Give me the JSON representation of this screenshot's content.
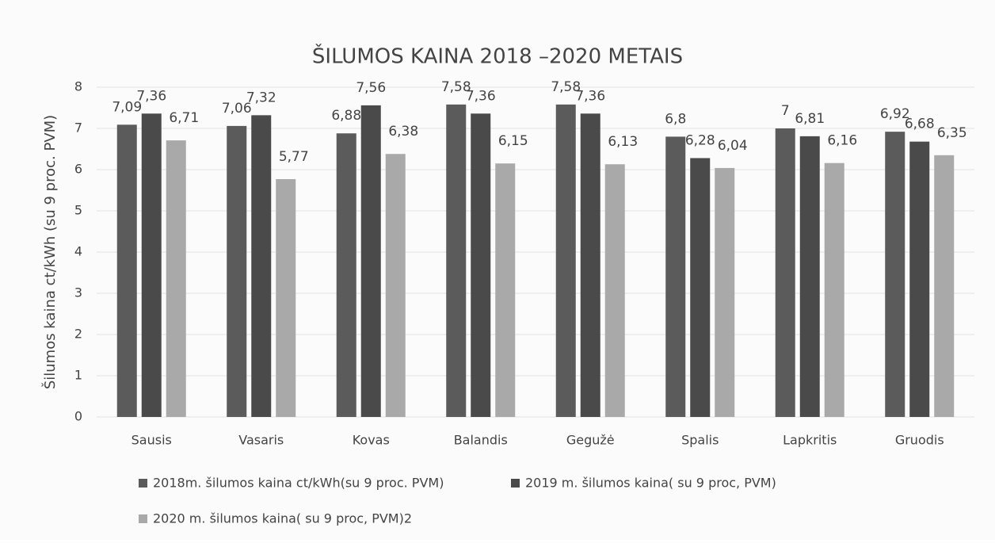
{
  "chart_data": {
    "type": "bar",
    "title": "ŠILUMOS KAINA 2018 –2020 METAIS",
    "y_label": "Šilumos kaina ct/kWh (su 9 proc. PVM)",
    "categories": [
      "Sausis",
      "Vasaris",
      "Kovas",
      "Balandis",
      "Gegužė",
      "Spalis",
      "Lapkritis",
      "Gruodis"
    ],
    "series": [
      {
        "name": "2018m. šilumos kaina ct/kWh(su 9 proc. PVM)",
        "color": "#5b5b5b",
        "values": [
          7.09,
          7.06,
          6.88,
          7.58,
          7.58,
          6.8,
          7,
          6.92
        ],
        "value_labels": [
          "7,09",
          "7,06",
          "6,88",
          "7,58",
          "7,58",
          "6,8",
          "7",
          "6,92"
        ]
      },
      {
        "name": "2019 m. šilumos kaina( su 9 proc, PVM)",
        "color": "#4a4a4a",
        "values": [
          7.36,
          7.32,
          7.56,
          7.36,
          7.36,
          6.28,
          6.81,
          6.68
        ],
        "value_labels": [
          "7,36",
          "7,32",
          "7,56",
          "7,36",
          "7,36",
          "6,28",
          "6,81",
          "6,68"
        ]
      },
      {
        "name": "2020 m. šilumos kaina( su 9 proc, PVM)2",
        "color": "#a9a9a9",
        "values": [
          6.71,
          5.77,
          6.38,
          6.15,
          6.13,
          6.04,
          6.16,
          6.35
        ],
        "value_labels": [
          "6,71",
          "5,77",
          "6,38",
          "6,15",
          "6,13",
          "6,04",
          "6,16",
          "6,35"
        ]
      }
    ],
    "ylim": [
      0,
      8
    ],
    "yticks": [
      0,
      1,
      2,
      3,
      4,
      5,
      6,
      7,
      8
    ],
    "grid": true,
    "legend": "bottom"
  }
}
